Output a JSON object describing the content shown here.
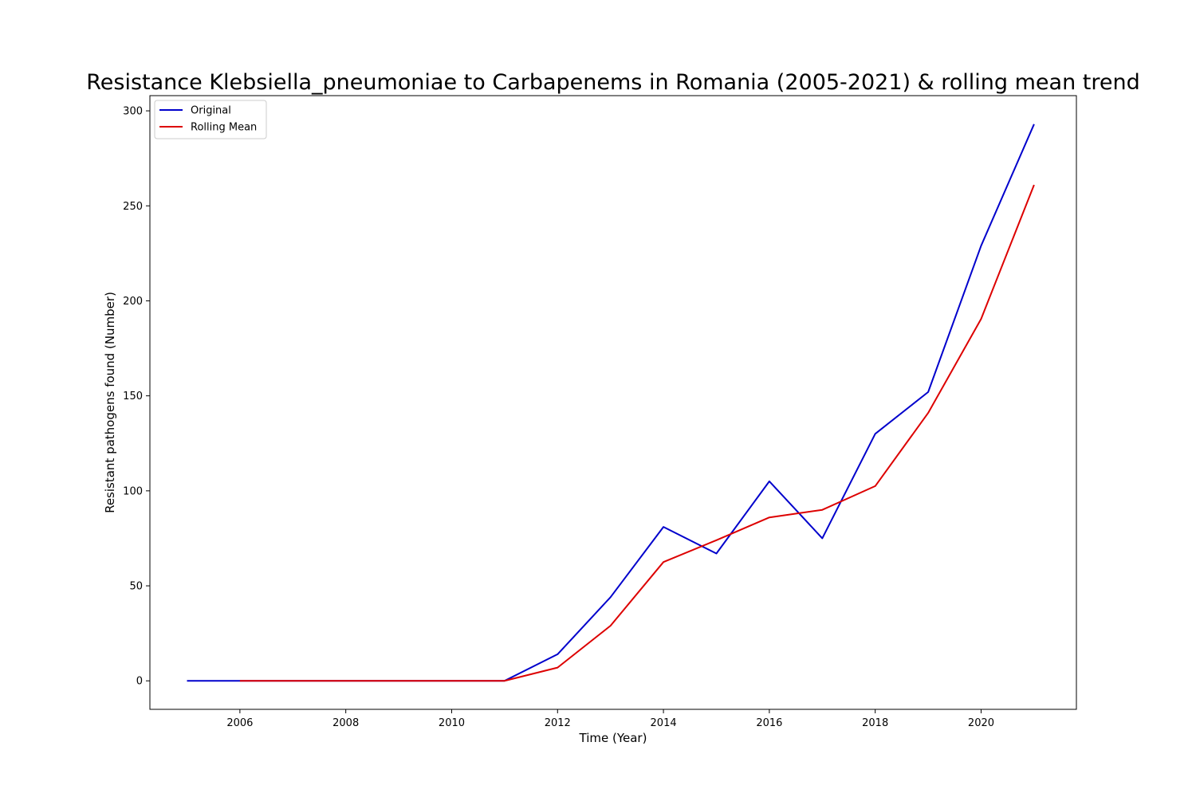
{
  "chart_data": {
    "type": "line",
    "title": "Resistance Klebsiella_pneumoniae to Carbapenems in Romania (2005-2021) & rolling mean trend",
    "xlabel": "Time (Year)",
    "ylabel": "Resistant pathogens found (Number)",
    "xlim": [
      2004.3,
      2021.8
    ],
    "ylim": [
      -15,
      308
    ],
    "xticks": [
      2006,
      2008,
      2010,
      2012,
      2014,
      2016,
      2018,
      2020
    ],
    "yticks": [
      0,
      50,
      100,
      150,
      200,
      250,
      300
    ],
    "grid": false,
    "legend_position": "top-left",
    "series": [
      {
        "name": "Original",
        "color": "#0000cc",
        "x": [
          2005,
          2006,
          2007,
          2008,
          2009,
          2010,
          2011,
          2012,
          2013,
          2014,
          2015,
          2016,
          2017,
          2018,
          2019,
          2020,
          2021
        ],
        "values": [
          0,
          0,
          0,
          0,
          0,
          0,
          0,
          14,
          44,
          81,
          67,
          105,
          75,
          130,
          152,
          229,
          293
        ]
      },
      {
        "name": "Rolling Mean",
        "color": "#dd0000",
        "x": [
          2006,
          2007,
          2008,
          2009,
          2010,
          2011,
          2012,
          2013,
          2014,
          2015,
          2016,
          2017,
          2018,
          2019,
          2020,
          2021
        ],
        "values": [
          0,
          0,
          0,
          0,
          0,
          0,
          7,
          29,
          62.5,
          74,
          86,
          90,
          102.5,
          141,
          190.5,
          261
        ]
      }
    ]
  }
}
